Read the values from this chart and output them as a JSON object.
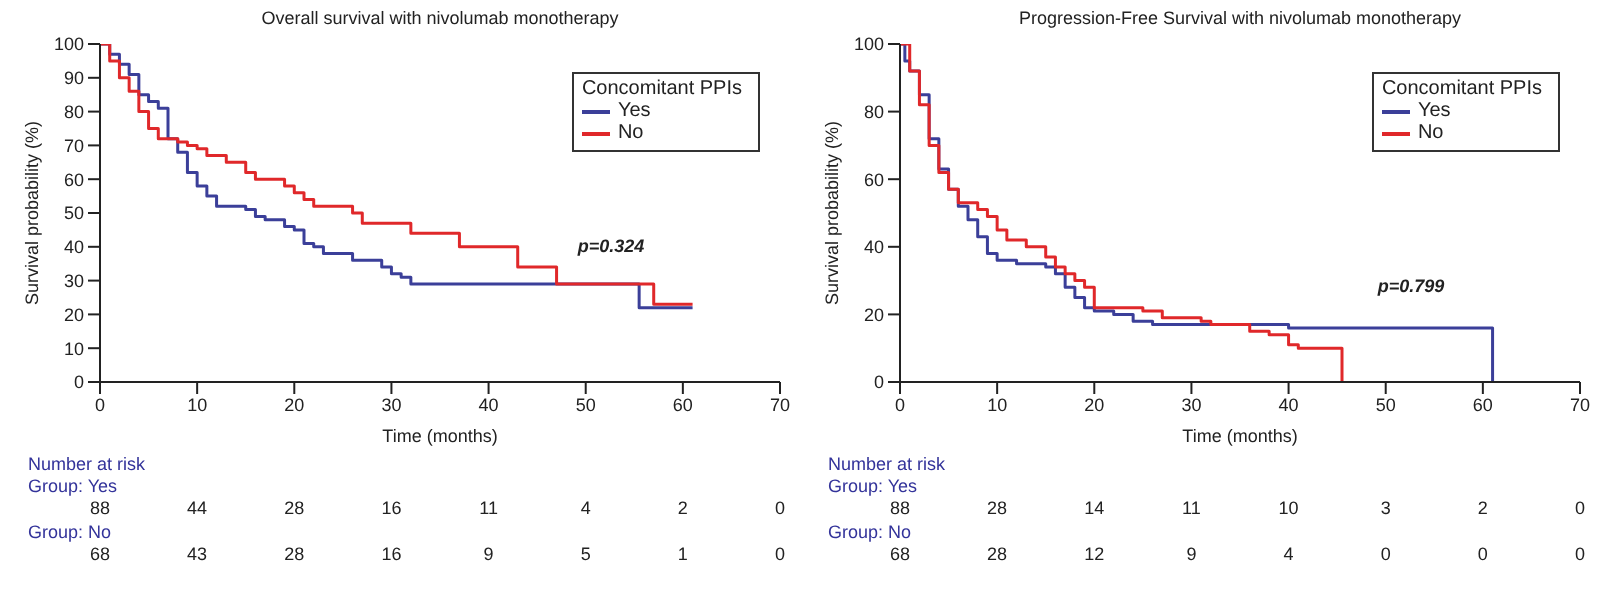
{
  "chart_data": [
    {
      "type": "step",
      "title": "Overall survival with nivolumab monotherapy",
      "xlabel": "Time (months)",
      "ylabel": "Survival probability (%)",
      "legend_title": "Concomitant PPIs",
      "legend": "top right",
      "grid": false,
      "marker": "none",
      "line_style": "solid",
      "xlim": [
        0,
        70
      ],
      "xticks": [
        0,
        10,
        20,
        30,
        40,
        50,
        60,
        70
      ],
      "ylim": [
        0,
        100
      ],
      "yticks": [
        0,
        10,
        20,
        30,
        40,
        50,
        60,
        70,
        80,
        90,
        100
      ],
      "annotations": [
        "p=0.324",
        "Number at risk",
        "Group: Yes",
        "88",
        "44",
        "28",
        "16",
        "11",
        "4",
        "2",
        "0",
        "Group: No",
        "68",
        "43",
        "28",
        "16",
        "9",
        "5",
        "1",
        "0"
      ],
      "series": [
        {
          "name": "Yes",
          "color": "#3b3f99",
          "x": [
            0,
            1,
            2,
            3,
            4,
            5,
            6,
            7,
            8,
            9,
            10,
            11,
            12,
            15,
            16,
            17,
            19,
            20,
            21,
            22,
            23,
            26,
            29,
            30,
            31,
            32,
            55.5,
            61
          ],
          "values": [
            100,
            97,
            94,
            91,
            85,
            83,
            81,
            72,
            68,
            62,
            58,
            55,
            52,
            51,
            49,
            48,
            46,
            45,
            41,
            40,
            38,
            36,
            34,
            32,
            31,
            29,
            22,
            22
          ]
        },
        {
          "name": "No",
          "color": "#e0282a",
          "x": [
            0,
            1,
            2,
            3,
            4,
            5,
            6,
            8,
            9,
            10,
            11,
            13,
            15,
            16,
            19,
            20,
            21,
            22,
            26,
            27,
            32,
            37,
            43,
            47,
            57,
            61
          ],
          "values": [
            100,
            95,
            90,
            86,
            80,
            75,
            72,
            71,
            70,
            69,
            67,
            65,
            62,
            60,
            58,
            56,
            54,
            52,
            50,
            47,
            44,
            40,
            34,
            29,
            23,
            23
          ]
        }
      ]
    },
    {
      "type": "step",
      "title": "Progression-Free Survival with nivolumab monotherapy",
      "xlabel": "Time (months)",
      "ylabel": "Survival probability (%)",
      "legend_title": "Concomitant PPIs",
      "legend": "top right",
      "grid": false,
      "marker": "none",
      "line_style": "solid",
      "xlim": [
        0,
        70
      ],
      "xticks": [
        0,
        10,
        20,
        30,
        40,
        50,
        60,
        70
      ],
      "ylim": [
        0,
        100
      ],
      "yticks": [
        0,
        20,
        40,
        60,
        80,
        100
      ],
      "annotations": [
        "p=0.799",
        "Number at risk",
        "Group: Yes",
        "88",
        "28",
        "14",
        "11",
        "10",
        "3",
        "2",
        "0",
        "Group: No",
        "68",
        "28",
        "12",
        "9",
        "4",
        "0",
        "0",
        "0"
      ],
      "series": [
        {
          "name": "Yes",
          "color": "#3b3f99",
          "x": [
            0,
            0.5,
            1,
            2,
            3,
            4,
            5,
            6,
            7,
            8,
            9,
            10,
            12,
            15,
            16,
            17,
            18,
            19,
            20,
            22,
            24,
            26,
            40,
            61
          ],
          "values": [
            100,
            95,
            92,
            85,
            72,
            63,
            57,
            52,
            48,
            43,
            38,
            36,
            35,
            34,
            32,
            28,
            25,
            22,
            21,
            20,
            18,
            17,
            16,
            0
          ]
        },
        {
          "name": "No",
          "color": "#e0282a",
          "x": [
            0,
            1,
            2,
            3,
            4,
            5,
            6,
            8,
            9,
            10,
            11,
            13,
            15,
            16,
            17,
            18,
            19,
            20,
            25,
            27,
            31,
            32,
            36,
            38,
            40,
            41,
            45.5
          ],
          "values": [
            100,
            92,
            82,
            70,
            62,
            57,
            53,
            51,
            49,
            45,
            42,
            40,
            37,
            34,
            32,
            30,
            28,
            22,
            21,
            19,
            18,
            17,
            15,
            14,
            11,
            10,
            0
          ]
        }
      ]
    }
  ]
}
